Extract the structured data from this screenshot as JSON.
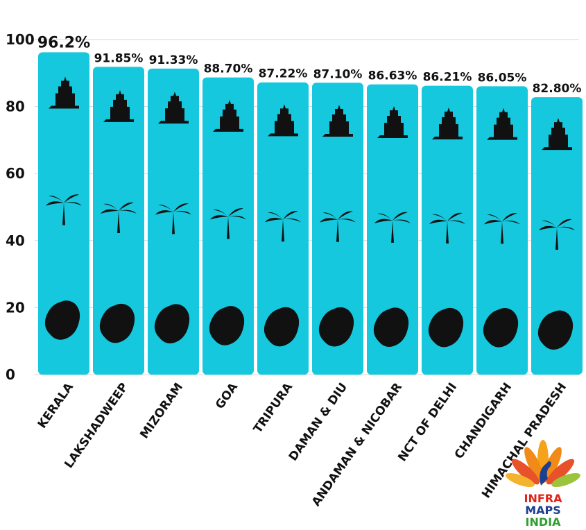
{
  "chart_data": {
    "type": "bar",
    "categories": [
      "KERALA",
      "LAKSHADWEEP",
      "MIZORAM",
      "GOA",
      "TRIPURA",
      "DAMAN & DIU",
      "ANDAMAN & NICOBAR",
      "NCT OF DELHI",
      "CHANDIGARH",
      "HIMACHAL PRADESH"
    ],
    "values": [
      96.2,
      91.85,
      91.33,
      88.7,
      87.22,
      87.1,
      86.63,
      86.21,
      86.05,
      82.8
    ],
    "data_labels": [
      "96.2%",
      "91.85%",
      "91.33%",
      "88.70%",
      "87.22%",
      "87.10%",
      "86.63%",
      "86.21%",
      "86.05%",
      "82.80%"
    ],
    "yticks": [
      "0",
      "20",
      "40",
      "60",
      "80",
      "100"
    ],
    "ylim": [
      0,
      100
    ],
    "bar_color": "#15c8dd",
    "grid": true,
    "title": "",
    "xlabel": "",
    "ylabel": ""
  },
  "logo": {
    "line1": "INFRA",
    "line2": "MAPS",
    "line3": "INDIA",
    "colors": [
      "#e2231a",
      "#1d3f8f",
      "#2f9e2f"
    ]
  },
  "icons": [
    "temple-icon",
    "lighthouse-icon",
    "palm-tree-icon",
    "boat-icon",
    "church-icon",
    "dancer-icon",
    "beach-umbrella-icon",
    "warship-icon",
    "cannon-icon",
    "fort-icon",
    "india-gate-icon",
    "open-hand-icon",
    "statue-icon",
    "mountain-icon",
    "state-map-icon"
  ]
}
